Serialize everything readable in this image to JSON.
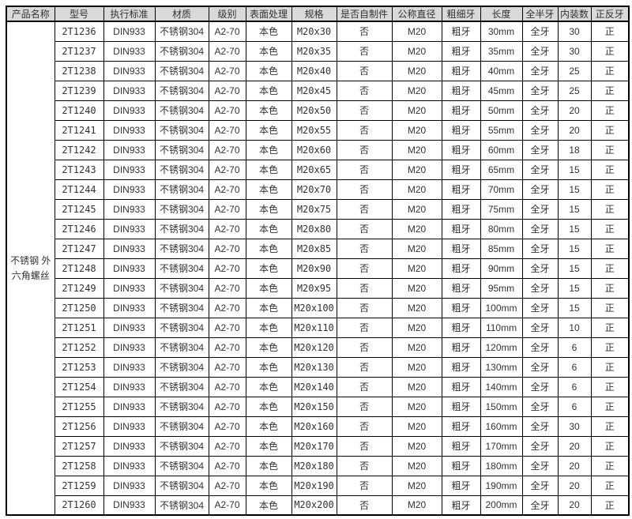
{
  "colors": {
    "header_bg": "#d9d9d9",
    "border": "#000000",
    "text": "#333333",
    "page_bg": "#ffffff"
  },
  "table": {
    "product_name": "不锈钢 外六角螺丝",
    "headers": [
      "产品名称",
      "型号",
      "执行标准",
      "材质",
      "级别",
      "表面处理",
      "规格",
      "是否自制件",
      "公称直径",
      "粗细牙",
      "长度",
      "全半牙",
      "内装数",
      "正反牙"
    ],
    "common": {
      "standard": "DIN933",
      "material": "不锈钢304",
      "grade": "A2-70",
      "finish": "本色",
      "self_made": "否",
      "diameter": "M20",
      "thread_pitch": "粗牙",
      "thread_length": "全牙",
      "direction": "正"
    },
    "rows": [
      {
        "model": "2T1236",
        "spec": "M20x30",
        "length": "30mm",
        "qty": "30"
      },
      {
        "model": "2T1237",
        "spec": "M20x35",
        "length": "35mm",
        "qty": "30"
      },
      {
        "model": "2T1238",
        "spec": "M20x40",
        "length": "40mm",
        "qty": "25"
      },
      {
        "model": "2T1239",
        "spec": "M20x45",
        "length": "45mm",
        "qty": "25"
      },
      {
        "model": "2T1240",
        "spec": "M20x50",
        "length": "50mm",
        "qty": "20"
      },
      {
        "model": "2T1241",
        "spec": "M20x55",
        "length": "55mm",
        "qty": "20"
      },
      {
        "model": "2T1242",
        "spec": "M20x60",
        "length": "60mm",
        "qty": "18"
      },
      {
        "model": "2T1243",
        "spec": "M20x65",
        "length": "65mm",
        "qty": "15"
      },
      {
        "model": "2T1244",
        "spec": "M20x70",
        "length": "70mm",
        "qty": "15"
      },
      {
        "model": "2T1245",
        "spec": "M20x75",
        "length": "75mm",
        "qty": "15"
      },
      {
        "model": "2T1246",
        "spec": "M20x80",
        "length": "80mm",
        "qty": "15"
      },
      {
        "model": "2T1247",
        "spec": "M20x85",
        "length": "85mm",
        "qty": "15"
      },
      {
        "model": "2T1248",
        "spec": "M20x90",
        "length": "90mm",
        "qty": "15"
      },
      {
        "model": "2T1249",
        "spec": "M20x95",
        "length": "95mm",
        "qty": "15"
      },
      {
        "model": "2T1250",
        "spec": "M20x100",
        "length": "100mm",
        "qty": "15"
      },
      {
        "model": "2T1251",
        "spec": "M20x110",
        "length": "110mm",
        "qty": "10"
      },
      {
        "model": "2T1252",
        "spec": "M20x120",
        "length": "120mm",
        "qty": "6"
      },
      {
        "model": "2T1253",
        "spec": "M20x130",
        "length": "130mm",
        "qty": "6"
      },
      {
        "model": "2T1254",
        "spec": "M20x140",
        "length": "140mm",
        "qty": "6"
      },
      {
        "model": "2T1255",
        "spec": "M20x150",
        "length": "150mm",
        "qty": "6"
      },
      {
        "model": "2T1256",
        "spec": "M20x160",
        "length": "160mm",
        "qty": "30"
      },
      {
        "model": "2T1257",
        "spec": "M20x170",
        "length": "170mm",
        "qty": "20"
      },
      {
        "model": "2T1258",
        "spec": "M20x180",
        "length": "180mm",
        "qty": "20"
      },
      {
        "model": "2T1259",
        "spec": "M20x190",
        "length": "190mm",
        "qty": "20"
      },
      {
        "model": "2T1260",
        "spec": "M20x200",
        "length": "200mm",
        "qty": "20"
      }
    ]
  }
}
